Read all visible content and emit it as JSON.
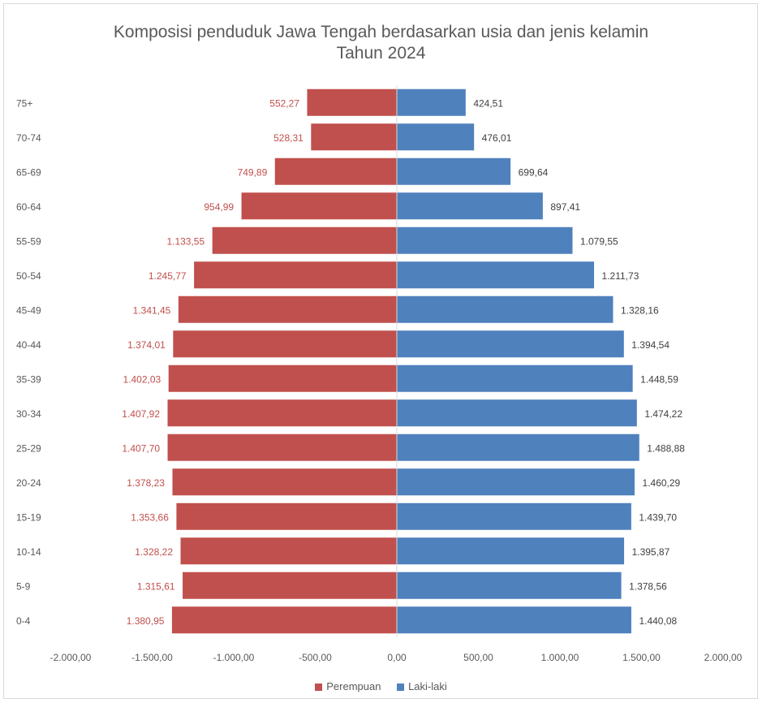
{
  "chart_data": {
    "type": "bar",
    "orientation": "horizontal",
    "stacked": true,
    "title": "Komposisi penduduk Jawa Tengah berdasarkan usia dan jenis kelamin",
    "subtitle": "Tahun 2024",
    "categories": [
      "75+",
      "70-74",
      "65-69",
      "60-64",
      "55-59",
      "50-54",
      "45-49",
      "40-44",
      "35-39",
      "30-34",
      "25-29",
      "20-24",
      "15-19",
      "10-14",
      "5-9",
      "0-4"
    ],
    "series": [
      {
        "name": "Perempuan",
        "color": "#c0504d",
        "label_color": "#c0504d",
        "values": [
          -552.27,
          -528.31,
          -749.89,
          -954.99,
          -1133.55,
          -1245.77,
          -1341.45,
          -1374.01,
          -1402.03,
          -1407.92,
          -1407.7,
          -1378.23,
          -1353.66,
          -1328.22,
          -1315.61,
          -1380.95
        ],
        "labels": [
          "552,27",
          "528,31",
          "749,89",
          "954,99",
          "1.133,55",
          "1.245,77",
          "1.341,45",
          "1.374,01",
          "1.402,03",
          "1.407,92",
          "1.407,70",
          "1.378,23",
          "1.353,66",
          "1.328,22",
          "1.315,61",
          "1.380,95"
        ]
      },
      {
        "name": "Laki-laki",
        "color": "#4f81bd",
        "label_color": "#404040",
        "values": [
          424.51,
          476.01,
          699.64,
          897.41,
          1079.55,
          1211.73,
          1328.16,
          1394.54,
          1448.59,
          1474.22,
          1488.88,
          1460.29,
          1439.7,
          1395.87,
          1378.56,
          1440.08
        ],
        "labels": [
          "424,51",
          "476,01",
          "699,64",
          "897,41",
          "1.079,55",
          "1.211,73",
          "1.328,16",
          "1.394,54",
          "1.448,59",
          "1.474,22",
          "1.488,88",
          "1.460,29",
          "1.439,70",
          "1.395,87",
          "1.378,56",
          "1.440,08"
        ]
      }
    ],
    "xlim": [
      -2000,
      2000
    ],
    "xticks": [
      -2000,
      -1500,
      -1000,
      -500,
      0,
      500,
      1000,
      1500,
      2000
    ],
    "xtick_labels": [
      "-2.000,00",
      "-1.500,00",
      "-1.000,00",
      "-500,00",
      "0,00",
      "500,00",
      "1.000,00",
      "1.500,00",
      "2.000,00"
    ],
    "grid": false,
    "legend_position": "bottom"
  }
}
